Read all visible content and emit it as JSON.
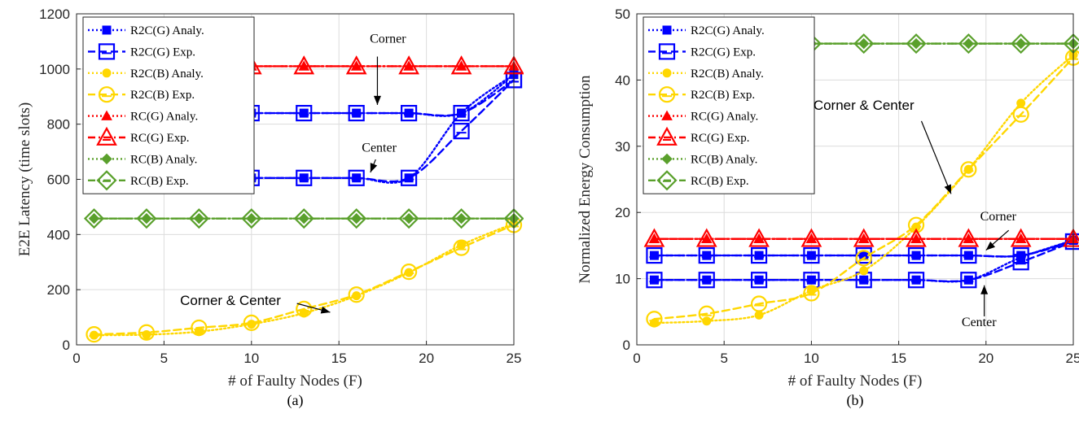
{
  "chart_data": [
    {
      "type": "line",
      "caption": "(a)",
      "xlabel": "# of Faulty Nodes (F)",
      "ylabel": "E2E Latency (time slots)",
      "xlim": [
        0,
        25
      ],
      "ylim": [
        0,
        1200
      ],
      "xticks": [
        0,
        5,
        10,
        15,
        20,
        25
      ],
      "yticks": [
        0,
        200,
        400,
        600,
        800,
        1000,
        1200
      ],
      "grid": true,
      "legend_position": "top-left",
      "series": [
        {
          "name": "R2C(G) Analy.",
          "color": "#0000ff",
          "style": "dotted",
          "marker": "square-filled",
          "x": [
            1,
            4,
            7,
            10,
            13,
            16,
            19,
            22,
            25
          ],
          "y": [
            840,
            840,
            840,
            840,
            840,
            840,
            840,
            840,
            980
          ],
          "y2": [
            605,
            605,
            605,
            605,
            605,
            605,
            605,
            840,
            980
          ]
        },
        {
          "name": "R2C(G) Exp.",
          "color": "#0000ff",
          "style": "dashed",
          "marker": "square-open",
          "x": [
            1,
            4,
            7,
            10,
            13,
            16,
            19,
            22,
            25
          ],
          "y": [
            840,
            840,
            840,
            840,
            840,
            840,
            840,
            840,
            960
          ],
          "y2": [
            605,
            605,
            605,
            605,
            605,
            605,
            605,
            775,
            960
          ]
        },
        {
          "name": "R2C(B) Analy.",
          "color": "#ffd700",
          "style": "dotted",
          "marker": "circle-filled",
          "x": [
            1,
            4,
            7,
            10,
            13,
            16,
            19,
            22,
            25
          ],
          "y": [
            35,
            37,
            48,
            75,
            115,
            178,
            262,
            362,
            440
          ]
        },
        {
          "name": "R2C(B) Exp.",
          "color": "#ffd700",
          "style": "dashed",
          "marker": "circle-open",
          "x": [
            1,
            4,
            7,
            10,
            13,
            16,
            19,
            22,
            25
          ],
          "y": [
            38,
            45,
            62,
            80,
            130,
            182,
            265,
            352,
            435
          ]
        },
        {
          "name": "RC(G) Analy.",
          "color": "#ff0000",
          "style": "dotted",
          "marker": "triangle-filled",
          "x": [
            1,
            4,
            7,
            10,
            13,
            16,
            19,
            22,
            25
          ],
          "y": [
            1010,
            1010,
            1010,
            1010,
            1010,
            1010,
            1010,
            1010,
            1010
          ]
        },
        {
          "name": "RC(G) Exp.",
          "color": "#ff0000",
          "style": "dashdot",
          "marker": "triangle-open",
          "x": [
            1,
            4,
            7,
            10,
            13,
            16,
            19,
            22,
            25
          ],
          "y": [
            1010,
            1010,
            1010,
            1010,
            1010,
            1010,
            1010,
            1010,
            1010
          ]
        },
        {
          "name": "RC(B) Analy.",
          "color": "#5aa02c",
          "style": "dotted",
          "marker": "diamond-filled",
          "x": [
            1,
            4,
            7,
            10,
            13,
            16,
            19,
            22,
            25
          ],
          "y": [
            458,
            458,
            458,
            458,
            458,
            458,
            458,
            458,
            458
          ]
        },
        {
          "name": "RC(B) Exp.",
          "color": "#5aa02c",
          "style": "dashdot",
          "marker": "diamond-open",
          "x": [
            1,
            4,
            7,
            10,
            13,
            16,
            19,
            22,
            25
          ],
          "y": [
            458,
            458,
            458,
            458,
            458,
            458,
            458,
            458,
            458
          ]
        }
      ],
      "annotations": [
        {
          "text": "Corner",
          "font": "serif",
          "text_x": 17.8,
          "text_y": 1095,
          "arrow_from": [
            17.2,
            1045
          ],
          "arrow_to": [
            17.2,
            870
          ]
        },
        {
          "text": "Center",
          "font": "serif",
          "text_x": 17.3,
          "text_y": 700,
          "arrow_from": [
            17.1,
            672
          ],
          "arrow_to": [
            16.8,
            625
          ]
        },
        {
          "text": "Corner & Center",
          "font": "sans",
          "text_x": 8.8,
          "text_y": 145,
          "arrow_from": [
            12.6,
            150
          ],
          "arrow_to": [
            14.5,
            118
          ]
        }
      ]
    },
    {
      "type": "line",
      "caption": "(b)",
      "xlabel": "# of Faulty Nodes (F)",
      "ylabel": "Normalized Energy Consumption",
      "xlim": [
        0,
        25
      ],
      "ylim": [
        0,
        50
      ],
      "xticks": [
        0,
        5,
        10,
        15,
        20,
        25
      ],
      "yticks": [
        0,
        10,
        20,
        30,
        40,
        50
      ],
      "grid": true,
      "legend_position": "top-left",
      "series": [
        {
          "name": "R2C(G) Analy.",
          "color": "#0000ff",
          "style": "dotted",
          "marker": "square-filled",
          "x": [
            1,
            4,
            7,
            10,
            13,
            16,
            19,
            22,
            25
          ],
          "y": [
            13.5,
            13.5,
            13.5,
            13.5,
            13.5,
            13.5,
            13.5,
            13.5,
            15.8
          ],
          "y2": [
            9.8,
            9.8,
            9.8,
            9.8,
            9.8,
            9.8,
            9.8,
            13.2,
            15.8
          ]
        },
        {
          "name": "R2C(G) Exp.",
          "color": "#0000ff",
          "style": "dashed",
          "marker": "square-open",
          "x": [
            1,
            4,
            7,
            10,
            13,
            16,
            19,
            22,
            25
          ],
          "y": [
            13.5,
            13.5,
            13.5,
            13.5,
            13.5,
            13.5,
            13.5,
            13.5,
            15.6
          ],
          "y2": [
            9.8,
            9.8,
            9.8,
            9.8,
            9.8,
            9.8,
            9.8,
            12.5,
            15.6
          ]
        },
        {
          "name": "R2C(B) Analy.",
          "color": "#ffd700",
          "style": "dotted",
          "marker": "circle-filled",
          "x": [
            1,
            4,
            7,
            10,
            13,
            16,
            19,
            22,
            25
          ],
          "y": [
            3.3,
            3.6,
            4.5,
            8.2,
            11.2,
            17.8,
            26.5,
            36.5,
            43.8
          ]
        },
        {
          "name": "R2C(B) Exp.",
          "color": "#ffd700",
          "style": "dashed",
          "marker": "circle-open",
          "x": [
            1,
            4,
            7,
            10,
            13,
            16,
            19,
            22,
            25
          ],
          "y": [
            3.9,
            4.7,
            6.2,
            7.8,
            13.1,
            18.1,
            26.5,
            34.8,
            43.4
          ]
        },
        {
          "name": "RC(G) Analy.",
          "color": "#ff0000",
          "style": "dotted",
          "marker": "triangle-filled",
          "x": [
            1,
            4,
            7,
            10,
            13,
            16,
            19,
            22,
            25
          ],
          "y": [
            16,
            16,
            16,
            16,
            16,
            16,
            16,
            16,
            16
          ]
        },
        {
          "name": "RC(G) Exp.",
          "color": "#ff0000",
          "style": "dashdot",
          "marker": "triangle-open",
          "x": [
            1,
            4,
            7,
            10,
            13,
            16,
            19,
            22,
            25
          ],
          "y": [
            16,
            16,
            16,
            16,
            16,
            16,
            16,
            16,
            16
          ]
        },
        {
          "name": "RC(B) Analy.",
          "color": "#5aa02c",
          "style": "dotted",
          "marker": "diamond-filled",
          "x": [
            1,
            4,
            7,
            10,
            13,
            16,
            19,
            22,
            25
          ],
          "y": [
            45.5,
            45.5,
            45.5,
            45.5,
            45.5,
            45.5,
            45.5,
            45.5,
            45.5
          ]
        },
        {
          "name": "RC(B) Exp.",
          "color": "#5aa02c",
          "style": "dashdot",
          "marker": "diamond-open",
          "x": [
            1,
            4,
            7,
            10,
            13,
            16,
            19,
            22,
            25
          ],
          "y": [
            45.5,
            45.5,
            45.5,
            45.5,
            45.5,
            45.5,
            45.5,
            45.5,
            45.5
          ]
        }
      ],
      "annotations": [
        {
          "text": "Corner & Center",
          "font": "sans",
          "text_x": 13.0,
          "text_y": 35.5,
          "arrow_from": [
            16.3,
            33.8
          ],
          "arrow_to": [
            18.0,
            22.8
          ]
        },
        {
          "text": "Corner",
          "font": "serif",
          "text_x": 20.7,
          "text_y": 18.8,
          "arrow_from": [
            21.3,
            17.3
          ],
          "arrow_to": [
            20.0,
            14.3
          ]
        },
        {
          "text": "Center",
          "font": "serif",
          "text_x": 19.6,
          "text_y": 2.8,
          "arrow_from": [
            19.9,
            4.3
          ],
          "arrow_to": [
            19.9,
            9.0
          ]
        }
      ]
    }
  ]
}
